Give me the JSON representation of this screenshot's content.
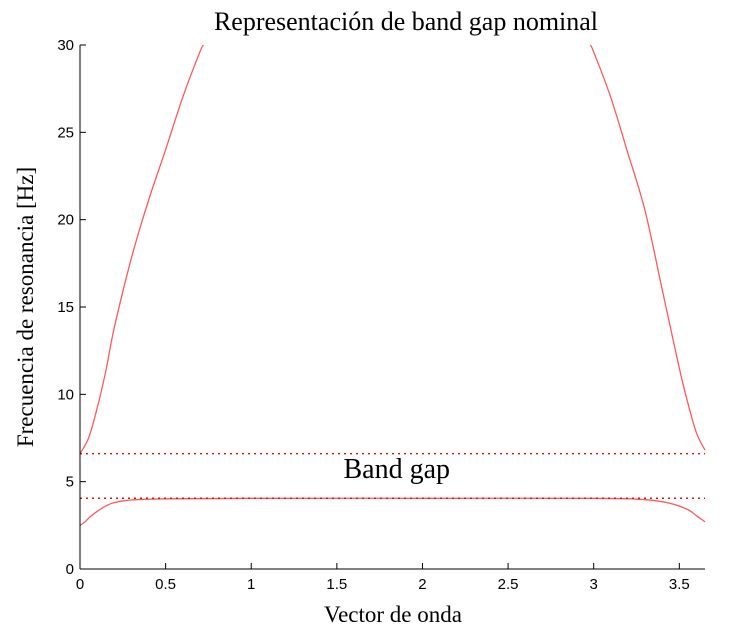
{
  "chart_data": {
    "type": "line",
    "title": "Representación de band gap nominal",
    "xlabel": "Vector de onda",
    "ylabel": "Frecuencia de resonancia [Hz]",
    "xlim": [
      0,
      3.65
    ],
    "ylim": [
      0,
      30
    ],
    "xticks": [
      "0",
      "0.5",
      "1",
      "1.5",
      "2",
      "2.5",
      "3",
      "3.5"
    ],
    "yticks": [
      "0",
      "5",
      "10",
      "15",
      "20",
      "25",
      "30"
    ],
    "grid": false,
    "line_color": "#ff5a5a",
    "series": [
      {
        "x": [
          0,
          0.05,
          0.1,
          0.15,
          0.2,
          0.3,
          0.4,
          0.5,
          0.6,
          0.7,
          0.72
        ],
        "y": [
          6.6,
          7.5,
          9.2,
          11.3,
          13.8,
          17.8,
          21.1,
          24.0,
          27.0,
          29.6,
          30.0
        ]
      },
      {
        "x": [
          0,
          0.03,
          0.06,
          0.1,
          0.15,
          0.2,
          0.3,
          0.5,
          1.0,
          2.0,
          3.0,
          3.3,
          3.45,
          3.55,
          3.6,
          3.65
        ],
        "y": [
          2.5,
          2.7,
          3.0,
          3.3,
          3.6,
          3.8,
          3.95,
          4.02,
          4.05,
          4.05,
          4.05,
          3.97,
          3.75,
          3.4,
          3.05,
          2.7
        ]
      },
      {
        "x": [
          2.98,
          3.0,
          3.1,
          3.2,
          3.3,
          3.4,
          3.5,
          3.55,
          3.6,
          3.65
        ],
        "y": [
          30.0,
          29.6,
          27.0,
          23.8,
          20.5,
          16.0,
          11.5,
          9.5,
          7.8,
          6.8
        ]
      }
    ],
    "reference_lines": [
      {
        "y": 6.6,
        "style": "dotted"
      },
      {
        "y": 4.05,
        "style": "dotted"
      }
    ],
    "annotations": [
      {
        "text": "Band gap",
        "x": 1.85,
        "y": 5.2
      }
    ]
  }
}
